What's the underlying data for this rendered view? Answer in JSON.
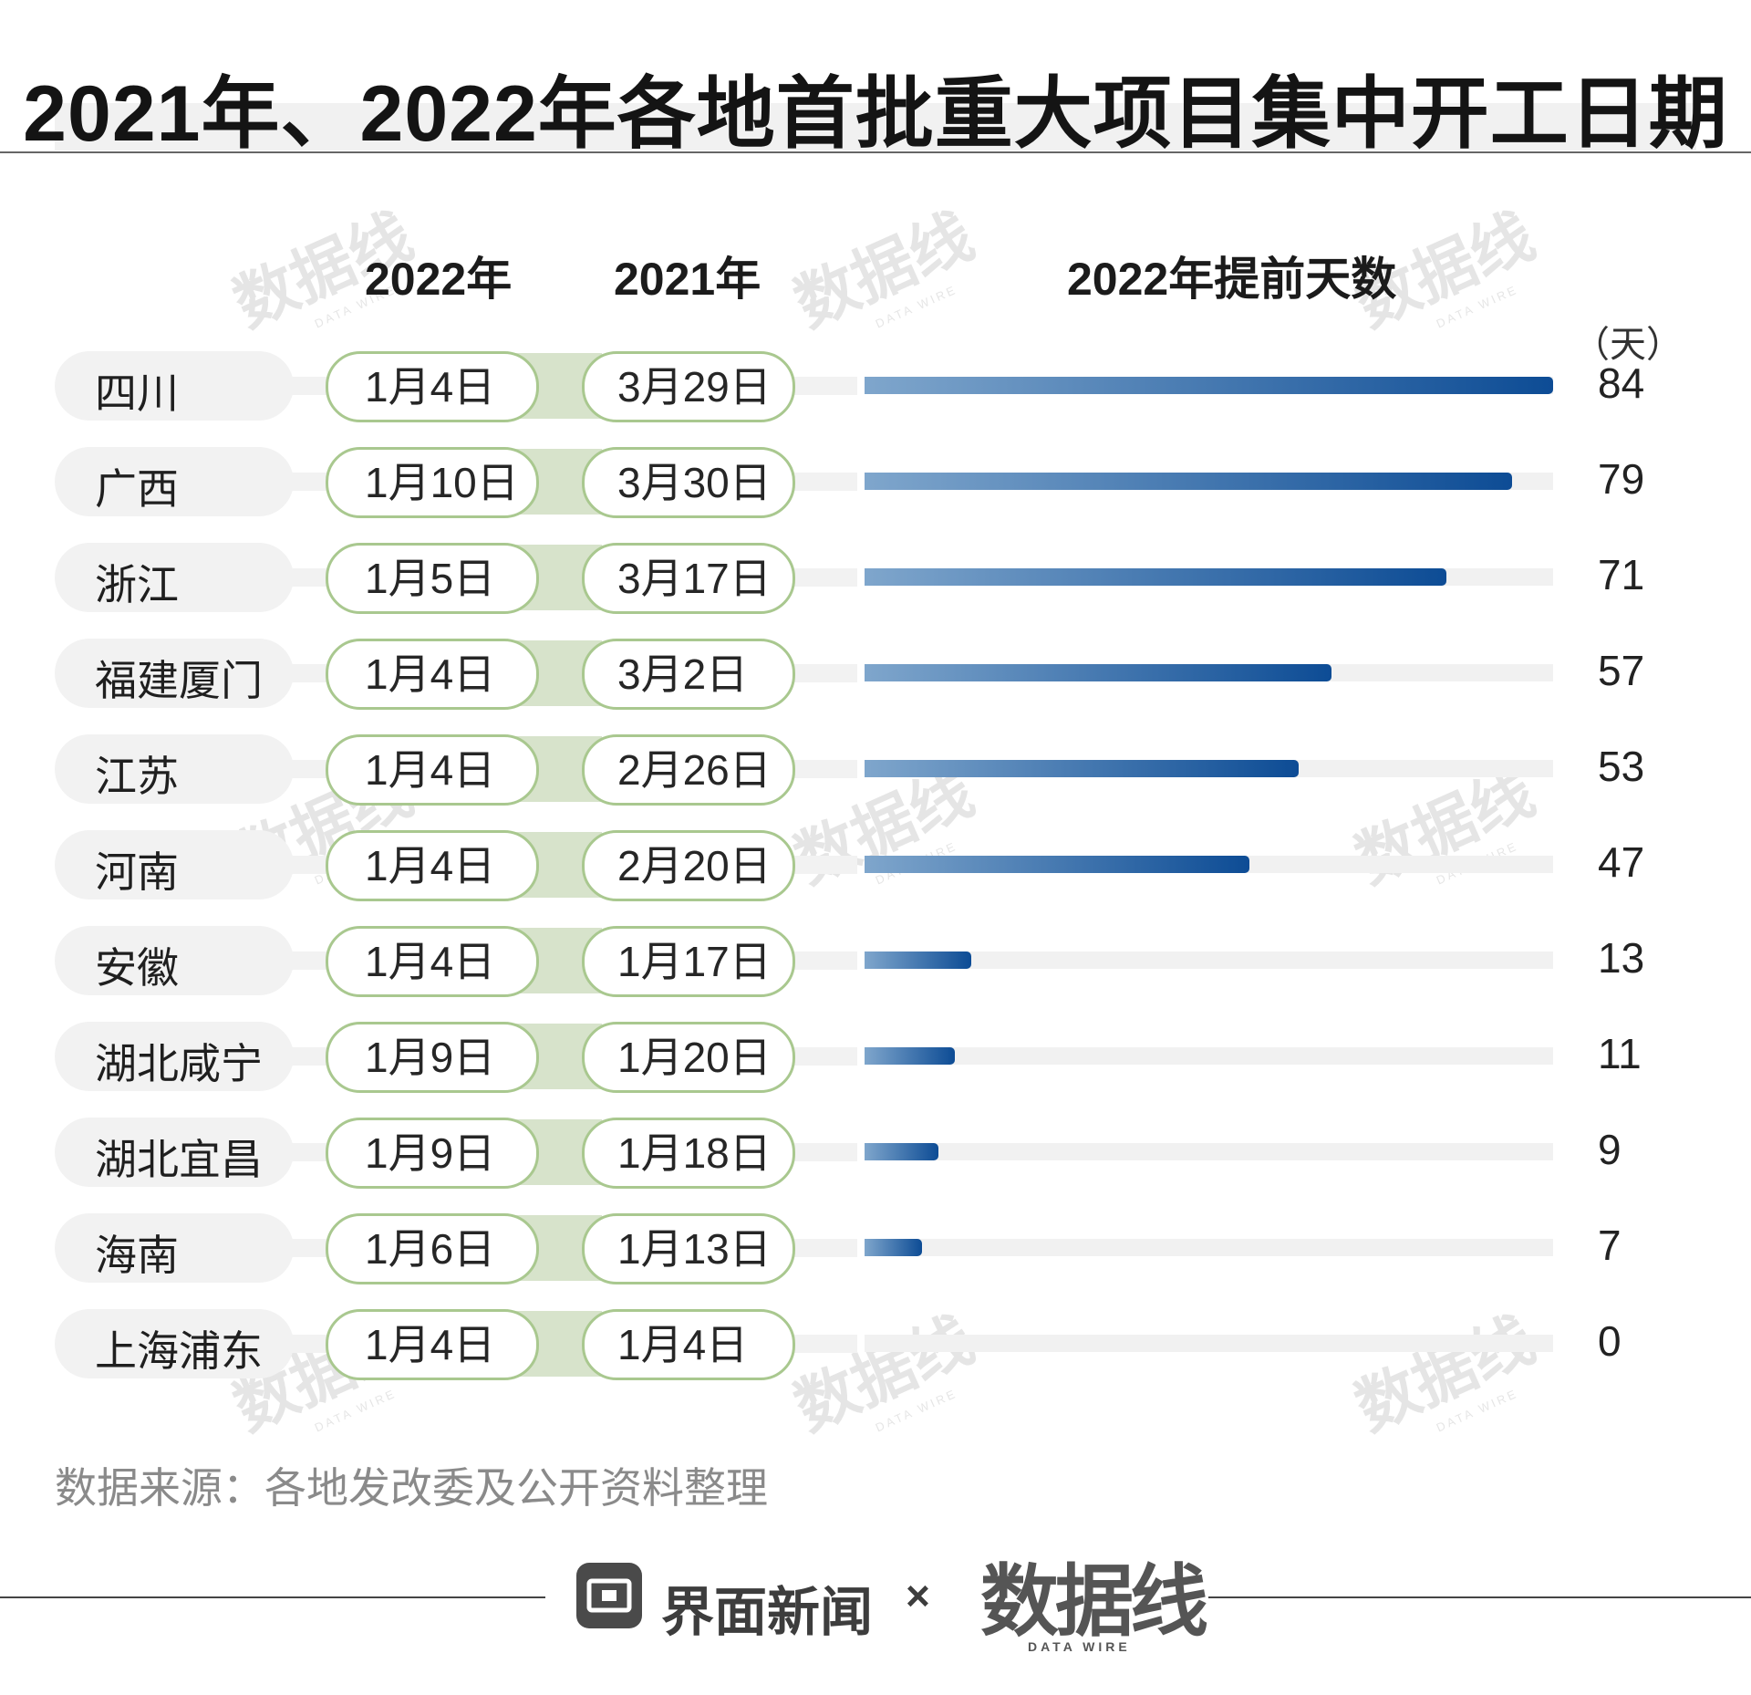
{
  "title": "2021年、2022年各地首批重大项目集中开工日期",
  "headers": {
    "col2022": "2022年",
    "col2021": "2021年",
    "colDays": "2022年提前天数"
  },
  "unit": "（天）",
  "watermark": {
    "main": "数据线",
    "sub": "DATA WIRE"
  },
  "chart_data": {
    "type": "bar",
    "orientation": "horizontal",
    "title": "2021年、2022年各地首批重大项目集中开工日期",
    "categories": [
      "四川",
      "广西",
      "浙江",
      "福建厦门",
      "江苏",
      "河南",
      "安徽",
      "湖北咸宁",
      "湖北宜昌",
      "海南",
      "上海浦东"
    ],
    "date_2022": [
      "1月4日",
      "1月10日",
      "1月5日",
      "1月4日",
      "1月4日",
      "1月4日",
      "1月4日",
      "1月9日",
      "1月9日",
      "1月6日",
      "1月4日"
    ],
    "date_2021": [
      "3月29日",
      "3月30日",
      "3月17日",
      "3月2日",
      "2月26日",
      "2月20日",
      "1月17日",
      "1月20日",
      "1月18日",
      "1月13日",
      "1月4日"
    ],
    "series": [
      {
        "name": "2022年提前天数",
        "values": [
          84,
          79,
          71,
          57,
          53,
          47,
          13,
          11,
          9,
          7,
          0
        ]
      }
    ],
    "xlim": [
      0,
      84
    ],
    "bar_color_from": "#7fa6cc",
    "bar_color_to": "#0d4c95",
    "date_pill_border": "#a9c88f",
    "link_band_color": "#d7e3cb"
  },
  "source": "数据来源：各地发改委及公开资料整理",
  "footer": {
    "brand": "界面新闻",
    "times": "×",
    "partner": "数据线",
    "partner_sub": "DATA WIRE"
  }
}
